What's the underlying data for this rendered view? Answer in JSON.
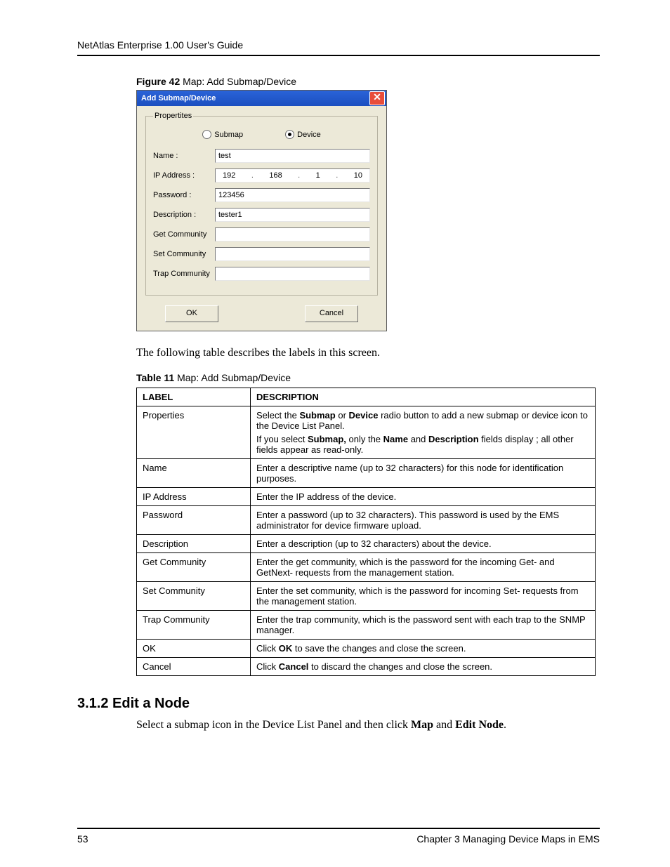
{
  "header": {
    "running_head": "NetAtlas Enterprise 1.00 User's Guide"
  },
  "figure": {
    "label_bold": "Figure 42",
    "label_rest": "   Map: Add Submap/Device"
  },
  "dialog": {
    "title": "Add Submap/Device",
    "close_glyph": "✕",
    "fieldset_legend": "Propertites",
    "radios": {
      "submap": "Submap",
      "device": "Device",
      "selected": "device"
    },
    "rows": {
      "name_lbl": "Name :",
      "name_val": "test",
      "ip_lbl": "IP Address :",
      "ip": {
        "a": "192",
        "b": "168",
        "c": "1",
        "d": "10"
      },
      "pw_lbl": "Password :",
      "pw_val": "123456",
      "desc_lbl": "Description :",
      "desc_val": "tester1",
      "get_lbl": "Get Community",
      "get_val": "",
      "set_lbl": "Set Community",
      "set_val": "",
      "trap_lbl": "Trap Community",
      "trap_val": ""
    },
    "buttons": {
      "ok": "OK",
      "cancel": "Cancel"
    }
  },
  "paragraph_after_fig": "The following table describes the labels in this screen.",
  "table_label": {
    "bold": "Table 11",
    "rest": "   Map: Add Submap/Device"
  },
  "table": {
    "headers": {
      "label": "LABEL",
      "desc": "DESCRIPTION"
    },
    "rows": [
      {
        "label": "Properties",
        "desc": [
          {
            "pre": "Select the ",
            "b1": "Submap",
            "mid1": " or ",
            "b2": "Device",
            "post": " radio button to add a new submap or device icon to the Device List Panel."
          },
          {
            "pre": "If you select ",
            "b1": "Submap,",
            "mid1": " only the ",
            "b2": "Name",
            "mid2": " and ",
            "b3": "Description",
            "post": " fields display ; all other fields appear as read-only."
          }
        ]
      },
      {
        "label": "Name",
        "desc_plain": "Enter a descriptive name (up to 32 characters) for this node for identification purposes."
      },
      {
        "label": "IP Address",
        "desc_plain": "Enter the IP address of the device."
      },
      {
        "label": "Password",
        "desc_plain": "Enter a password (up to 32 characters). This password is used by the EMS administrator for device firmware upload."
      },
      {
        "label": "Description",
        "desc_plain": "Enter a description (up to 32 characters) about the device."
      },
      {
        "label": "Get Community",
        "desc_plain": "Enter the get community, which is the password for the incoming Get- and GetNext- requests from the management station."
      },
      {
        "label": "Set Community",
        "desc_plain": "Enter the set community, which is the password for incoming Set- requests from the management station."
      },
      {
        "label": "Trap Community",
        "desc_plain": "Enter the trap community, which is the password sent with each trap to the SNMP manager."
      },
      {
        "label": "OK",
        "desc_click": {
          "pre": "Click ",
          "b": "OK",
          "post": " to save the changes and close the screen."
        }
      },
      {
        "label": "Cancel",
        "desc_click": {
          "pre": "Click ",
          "b": "Cancel",
          "post": " to discard the changes and close the screen."
        }
      }
    ]
  },
  "section": {
    "heading": "3.1.2  Edit a Node",
    "body": {
      "pre": "Select a submap icon in the Device List Panel and then click ",
      "b1": "Map",
      "mid": " and ",
      "b2": "Edit Node",
      "post": "."
    }
  },
  "footer": {
    "page": "53",
    "chapter": "Chapter 3 Managing Device Maps in EMS"
  }
}
